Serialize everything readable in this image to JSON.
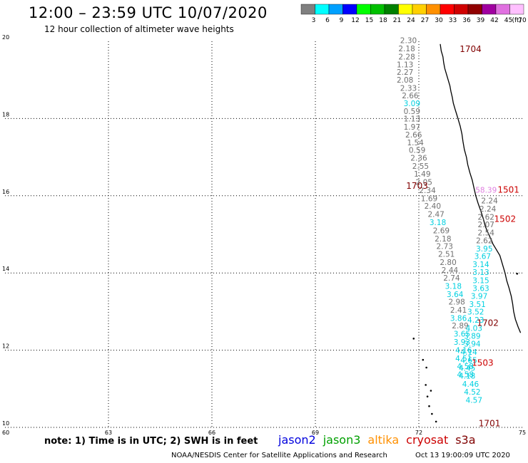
{
  "header": {
    "title": "12:00 – 23:59 UTC 10/07/2020",
    "subtitle": "12 hour collection of altimeter wave heights"
  },
  "legend": {
    "unit": "(ft)",
    "bins": [
      {
        "label": "3",
        "color": "#808080"
      },
      {
        "label": "6",
        "color": "#00ffff"
      },
      {
        "label": "9",
        "color": "#00a0ff"
      },
      {
        "label": "12",
        "color": "#0000ff"
      },
      {
        "label": "15",
        "color": "#00ff00"
      },
      {
        "label": "18",
        "color": "#00c000"
      },
      {
        "label": "21",
        "color": "#008000"
      },
      {
        "label": "24",
        "color": "#ffff00"
      },
      {
        "label": "27",
        "color": "#ffd000"
      },
      {
        "label": "30",
        "color": "#ff9000"
      },
      {
        "label": "33",
        "color": "#ff0000"
      },
      {
        "label": "36",
        "color": "#d00000"
      },
      {
        "label": "39",
        "color": "#900000"
      },
      {
        "label": "42",
        "color": "#a000a0"
      },
      {
        "label": "45",
        "color": "#e070e0"
      },
      {
        "label": "70",
        "color": "#ffc0ff"
      }
    ]
  },
  "axes": {
    "lat_ticks": [
      "20",
      "18",
      "16",
      "14",
      "12",
      "10"
    ],
    "lon_ticks": [
      "60",
      "63",
      "66",
      "69",
      "72",
      "75"
    ]
  },
  "tracks": [
    {
      "pass": "1704",
      "color": "#800000",
      "lon": 73.5,
      "lat": 19.72
    },
    {
      "pass": "1703",
      "color": "#800000",
      "lon": 71.95,
      "lat": 16.18
    },
    {
      "pass": "1702",
      "color": "#800000",
      "lon": 74.0,
      "lat": 12.63
    },
    {
      "pass": "1701",
      "color": "#800000",
      "lon": 74.05,
      "lat": 10.03
    },
    {
      "pass": "1501",
      "color": "#cc0000",
      "lon": 74.6,
      "lat": 16.08
    },
    {
      "pass": "1502",
      "color": "#cc0000",
      "lon": 74.5,
      "lat": 15.32
    },
    {
      "pass": "1503",
      "color": "#cc0000",
      "lon": 73.85,
      "lat": 11.6
    }
  ],
  "readings": [
    {
      "v": "2.30",
      "lon": 71.7,
      "lat": 19.95,
      "c": "#707070"
    },
    {
      "v": "2.18",
      "lon": 71.65,
      "lat": 19.74,
      "c": "#707070"
    },
    {
      "v": "2.28",
      "lon": 71.65,
      "lat": 19.53,
      "c": "#707070"
    },
    {
      "v": "1.13",
      "lon": 71.6,
      "lat": 19.33,
      "c": "#707070"
    },
    {
      "v": "2.27",
      "lon": 71.6,
      "lat": 19.13,
      "c": "#707070"
    },
    {
      "v": "2.08",
      "lon": 71.6,
      "lat": 18.93,
      "c": "#707070"
    },
    {
      "v": "2.33",
      "lon": 71.7,
      "lat": 18.72,
      "c": "#707070"
    },
    {
      "v": "2.66",
      "lon": 71.75,
      "lat": 18.52,
      "c": "#707070"
    },
    {
      "v": "3.09",
      "lon": 71.8,
      "lat": 18.32,
      "c": "#00d0e0"
    },
    {
      "v": "0.59",
      "lon": 71.8,
      "lat": 18.12,
      "c": "#707070"
    },
    {
      "v": "1.13",
      "lon": 71.8,
      "lat": 17.92,
      "c": "#707070"
    },
    {
      "v": "1.97",
      "lon": 71.8,
      "lat": 17.71,
      "c": "#707070"
    },
    {
      "v": "2.66",
      "lon": 71.85,
      "lat": 17.51,
      "c": "#707070"
    },
    {
      "v": "1.54",
      "lon": 71.9,
      "lat": 17.31,
      "c": "#707070"
    },
    {
      "v": "0.59",
      "lon": 71.95,
      "lat": 17.11,
      "c": "#707070"
    },
    {
      "v": "2.36",
      "lon": 72.0,
      "lat": 16.91,
      "c": "#707070"
    },
    {
      "v": "2.55",
      "lon": 72.05,
      "lat": 16.7,
      "c": "#707070"
    },
    {
      "v": "1.49",
      "lon": 72.1,
      "lat": 16.49,
      "c": "#707070"
    },
    {
      "v": "2.05",
      "lon": 72.15,
      "lat": 16.28,
      "c": "#707070"
    },
    {
      "v": "2.34",
      "lon": 72.25,
      "lat": 16.07,
      "c": "#707070"
    },
    {
      "v": "1.69",
      "lon": 72.3,
      "lat": 15.86,
      "c": "#707070"
    },
    {
      "v": "2.40",
      "lon": 72.4,
      "lat": 15.66,
      "c": "#707070"
    },
    {
      "v": "2.47",
      "lon": 72.5,
      "lat": 15.45,
      "c": "#707070"
    },
    {
      "v": "3.18",
      "lon": 72.55,
      "lat": 15.24,
      "c": "#00d0e0"
    },
    {
      "v": "2.69",
      "lon": 72.65,
      "lat": 15.03,
      "c": "#707070"
    },
    {
      "v": "2.18",
      "lon": 72.7,
      "lat": 14.82,
      "c": "#707070"
    },
    {
      "v": "2.73",
      "lon": 72.75,
      "lat": 14.62,
      "c": "#707070"
    },
    {
      "v": "2.51",
      "lon": 72.8,
      "lat": 14.42,
      "c": "#707070"
    },
    {
      "v": "2.80",
      "lon": 72.85,
      "lat": 14.21,
      "c": "#707070"
    },
    {
      "v": "2.44",
      "lon": 72.9,
      "lat": 14.0,
      "c": "#707070"
    },
    {
      "v": "2.74",
      "lon": 72.95,
      "lat": 13.8,
      "c": "#707070"
    },
    {
      "v": "3.18",
      "lon": 73.0,
      "lat": 13.59,
      "c": "#00d0e0"
    },
    {
      "v": "3.64",
      "lon": 73.05,
      "lat": 13.38,
      "c": "#00d0e0"
    },
    {
      "v": "2.98",
      "lon": 73.1,
      "lat": 13.18,
      "c": "#707070"
    },
    {
      "v": "2.41",
      "lon": 73.15,
      "lat": 12.97,
      "c": "#707070"
    },
    {
      "v": "3.86",
      "lon": 73.15,
      "lat": 12.76,
      "c": "#00d0e0"
    },
    {
      "v": "2.89",
      "lon": 73.2,
      "lat": 12.56,
      "c": "#707070"
    },
    {
      "v": "3.65",
      "lon": 73.25,
      "lat": 12.35,
      "c": "#00d0e0"
    },
    {
      "v": "3.93",
      "lon": 73.25,
      "lat": 12.14,
      "c": "#00d0e0"
    },
    {
      "v": "4.16",
      "lon": 73.3,
      "lat": 11.93,
      "c": "#00d0e0"
    },
    {
      "v": "4.51",
      "lon": 73.3,
      "lat": 11.72,
      "c": "#00d0e0"
    },
    {
      "v": "4.58",
      "lon": 73.35,
      "lat": 11.51,
      "c": "#00d0e0"
    },
    {
      "v": "4.58",
      "lon": 73.35,
      "lat": 11.3,
      "c": "#00d0e0"
    },
    {
      "v": "2.24",
      "lon": 74.05,
      "lat": 15.8,
      "c": "#707070"
    },
    {
      "v": "2.24",
      "lon": 74.0,
      "lat": 15.59,
      "c": "#707070"
    },
    {
      "v": "2.62",
      "lon": 73.95,
      "lat": 15.38,
      "c": "#707070"
    },
    {
      "v": "2.07",
      "lon": 73.95,
      "lat": 15.18,
      "c": "#707070"
    },
    {
      "v": "2.54",
      "lon": 73.95,
      "lat": 14.97,
      "c": "#707070"
    },
    {
      "v": "2.62",
      "lon": 73.9,
      "lat": 14.77,
      "c": "#707070"
    },
    {
      "v": "3.95",
      "lon": 73.9,
      "lat": 14.56,
      "c": "#00d0e0"
    },
    {
      "v": "3.67",
      "lon": 73.85,
      "lat": 14.36,
      "c": "#00d0e0"
    },
    {
      "v": "3.14",
      "lon": 73.8,
      "lat": 14.15,
      "c": "#00d0e0"
    },
    {
      "v": "3.13",
      "lon": 73.8,
      "lat": 13.95,
      "c": "#00d0e0"
    },
    {
      "v": "3.15",
      "lon": 73.8,
      "lat": 13.74,
      "c": "#00d0e0"
    },
    {
      "v": "3.63",
      "lon": 73.8,
      "lat": 13.53,
      "c": "#00d0e0"
    },
    {
      "v": "3.97",
      "lon": 73.75,
      "lat": 13.33,
      "c": "#00d0e0"
    },
    {
      "v": "3.51",
      "lon": 73.7,
      "lat": 13.12,
      "c": "#00d0e0"
    },
    {
      "v": "3.52",
      "lon": 73.65,
      "lat": 12.92,
      "c": "#00d0e0"
    },
    {
      "v": "4.23",
      "lon": 73.65,
      "lat": 12.71,
      "c": "#00d0e0"
    },
    {
      "v": "4.03",
      "lon": 73.6,
      "lat": 12.5,
      "c": "#00d0e0"
    },
    {
      "v": "3.89",
      "lon": 73.55,
      "lat": 12.3,
      "c": "#00d0e0"
    },
    {
      "v": "3.94",
      "lon": 73.55,
      "lat": 12.09,
      "c": "#00d0e0"
    },
    {
      "v": "4.14",
      "lon": 73.45,
      "lat": 11.88,
      "c": "#00d0e0"
    },
    {
      "v": "4.65",
      "lon": 73.45,
      "lat": 11.67,
      "c": "#00d0e0"
    },
    {
      "v": "4.45",
      "lon": 73.4,
      "lat": 11.47,
      "c": "#00d0e0"
    },
    {
      "v": "4.18",
      "lon": 73.4,
      "lat": 11.26,
      "c": "#00d0e0"
    },
    {
      "v": "4.46",
      "lon": 73.5,
      "lat": 11.05,
      "c": "#00d0e0"
    },
    {
      "v": "4.52",
      "lon": 73.55,
      "lat": 10.85,
      "c": "#00d0e0"
    },
    {
      "v": "4.57",
      "lon": 73.6,
      "lat": 10.64,
      "c": "#00d0e0"
    },
    {
      "v": "58.39",
      "lon": 73.95,
      "lat": 16.08,
      "c": "#e080e0"
    }
  ],
  "coastline": [
    [
      72.62,
      19.93
    ],
    [
      72.65,
      19.75
    ],
    [
      72.7,
      19.6
    ],
    [
      72.72,
      19.45
    ],
    [
      72.75,
      19.3
    ],
    [
      72.8,
      19.15
    ],
    [
      72.85,
      19.0
    ],
    [
      72.9,
      18.85
    ],
    [
      72.93,
      18.7
    ],
    [
      72.97,
      18.55
    ],
    [
      73.0,
      18.4
    ],
    [
      73.05,
      18.25
    ],
    [
      73.1,
      18.1
    ],
    [
      73.15,
      17.95
    ],
    [
      73.2,
      17.8
    ],
    [
      73.25,
      17.6
    ],
    [
      73.28,
      17.4
    ],
    [
      73.32,
      17.2
    ],
    [
      73.38,
      17.0
    ],
    [
      73.42,
      16.8
    ],
    [
      73.48,
      16.6
    ],
    [
      73.55,
      16.4
    ],
    [
      73.6,
      16.2
    ],
    [
      73.65,
      16.0
    ],
    [
      73.72,
      15.8
    ],
    [
      73.8,
      15.6
    ],
    [
      73.87,
      15.4
    ],
    [
      73.93,
      15.2
    ],
    [
      74.0,
      15.05
    ],
    [
      74.08,
      14.9
    ],
    [
      74.15,
      14.75
    ],
    [
      74.25,
      14.6
    ],
    [
      74.35,
      14.45
    ],
    [
      74.4,
      14.3
    ],
    [
      74.45,
      14.15
    ],
    [
      74.5,
      14.0
    ],
    [
      74.55,
      13.8
    ],
    [
      74.62,
      13.6
    ],
    [
      74.68,
      13.4
    ],
    [
      74.72,
      13.2
    ],
    [
      74.75,
      13.0
    ],
    [
      74.8,
      12.8
    ],
    [
      74.88,
      12.6
    ],
    [
      74.95,
      12.45
    ]
  ],
  "islands": [
    [
      72.2,
      11.1
    ],
    [
      72.35,
      10.95
    ],
    [
      72.12,
      11.75
    ],
    [
      72.22,
      11.55
    ],
    [
      72.3,
      10.55
    ],
    [
      72.38,
      10.35
    ],
    [
      72.5,
      10.15
    ],
    [
      72.25,
      10.8
    ],
    [
      71.85,
      12.3
    ],
    [
      74.85,
      13.98
    ]
  ],
  "footer": {
    "note": "note:  1) Time is in UTC;  2) SWH is in feet",
    "satellites": [
      {
        "name": "jason2",
        "color": "#0000dd"
      },
      {
        "name": "jason3",
        "color": "#00a000"
      },
      {
        "name": "altika",
        "color": "#ff9000"
      },
      {
        "name": "cryosat",
        "color": "#cc0000"
      },
      {
        "name": "s3a",
        "color": "#800000"
      }
    ],
    "credit": "NOAA/NESDIS Center for Satellite Applications and Research",
    "timestamp": "Oct 13 19:00:09 UTC 2020"
  }
}
